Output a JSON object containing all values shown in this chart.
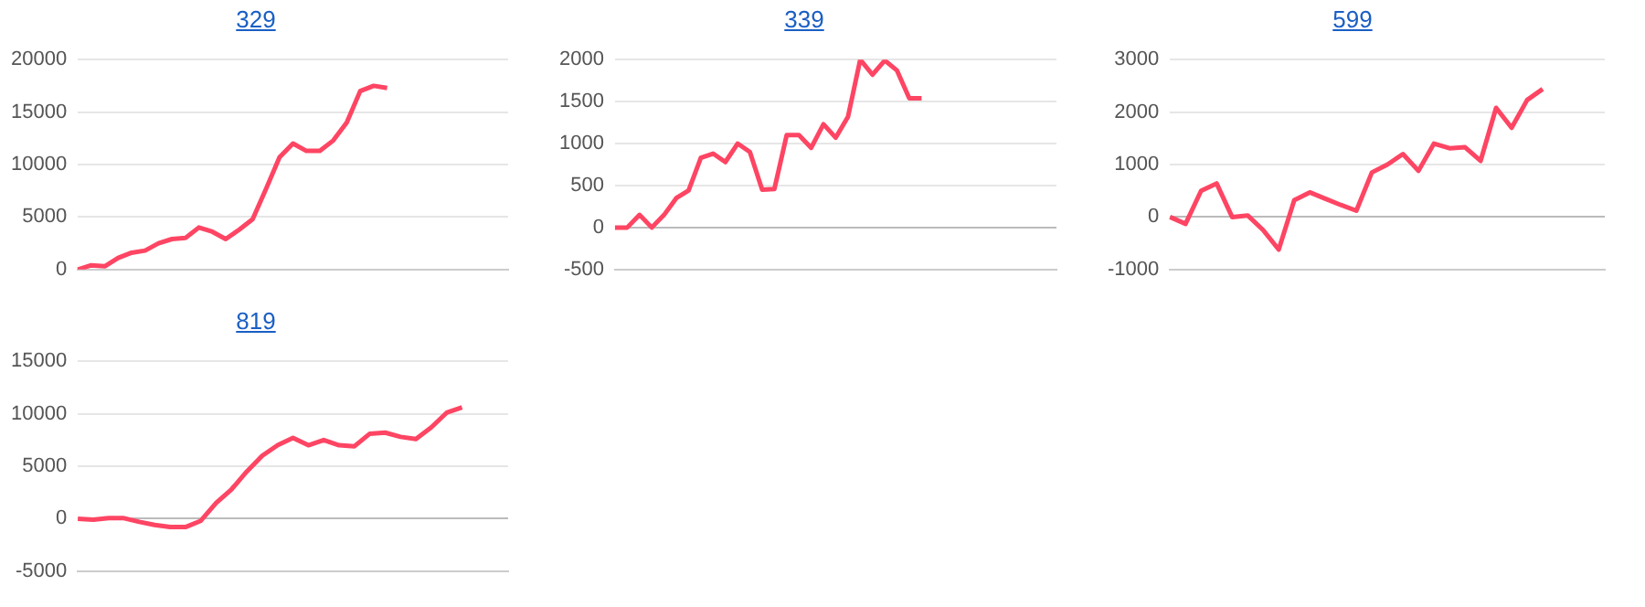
{
  "chart_data": [
    {
      "type": "line",
      "title": "329",
      "categories": [
        null,
        null,
        null,
        null,
        null,
        null,
        null,
        null,
        null,
        null,
        null,
        null,
        null,
        null,
        null,
        null,
        null,
        null,
        null,
        null,
        null,
        null,
        null,
        null,
        null,
        null,
        null,
        null,
        null,
        null,
        null,
        null,
        null
      ],
      "series": [
        {
          "color": "#fe4563",
          "values": [
            0,
            400,
            300,
            1100,
            1600,
            1800,
            2500,
            2900,
            3000,
            4000,
            3600,
            2900,
            3800,
            4800,
            7700,
            10700,
            12000,
            11300,
            11300,
            12300,
            14000,
            17000,
            17500,
            17300,
            null,
            null,
            null,
            null,
            null,
            null,
            null,
            null,
            null
          ]
        }
      ],
      "ylim": [
        0,
        20000
      ],
      "yticks": [
        0,
        5000,
        10000,
        15000,
        20000
      ],
      "grid": "y",
      "tick_labels": "y",
      "marker": "none"
    },
    {
      "type": "line",
      "title": "339",
      "categories": [
        null,
        null,
        null,
        null,
        null,
        null,
        null,
        null,
        null,
        null,
        null,
        null,
        null,
        null,
        null,
        null,
        null,
        null,
        null,
        null,
        null,
        null,
        null,
        null,
        null,
        null,
        null,
        null,
        null,
        null,
        null,
        null,
        null,
        null,
        null,
        null,
        null
      ],
      "series": [
        {
          "color": "#fe4563",
          "values": [
            0,
            0,
            150,
            0,
            150,
            350,
            440,
            830,
            880,
            780,
            1000,
            900,
            450,
            460,
            1100,
            1100,
            950,
            1230,
            1070,
            1320,
            2000,
            1820,
            1990,
            1870,
            1540,
            1540,
            null,
            null,
            null,
            null,
            null,
            null,
            null,
            null,
            null,
            null,
            null
          ]
        }
      ],
      "ylim": [
        -500,
        2000
      ],
      "yticks": [
        -500,
        0,
        500,
        1000,
        1500,
        2000
      ],
      "grid": "y",
      "tick_labels": "y",
      "marker": "none"
    },
    {
      "type": "line",
      "title": "599",
      "categories": [
        null,
        null,
        null,
        null,
        null,
        null,
        null,
        null,
        null,
        null,
        null,
        null,
        null,
        null,
        null,
        null,
        null,
        null,
        null,
        null,
        null,
        null,
        null,
        null,
        null,
        null,
        null,
        null,
        null
      ],
      "series": [
        {
          "color": "#fe4563",
          "values": [
            0,
            -130,
            500,
            640,
            0,
            30,
            -250,
            -620,
            320,
            470,
            350,
            230,
            120,
            850,
            1000,
            1200,
            880,
            1400,
            1310,
            1330,
            1070,
            2080,
            1700,
            2230,
            2440,
            null,
            null,
            null,
            null
          ]
        }
      ],
      "ylim": [
        -1000,
        3000
      ],
      "yticks": [
        -1000,
        0,
        1000,
        2000,
        3000
      ],
      "grid": "y",
      "tick_labels": "y",
      "marker": "none"
    },
    {
      "type": "line",
      "title": "819",
      "categories": [
        null,
        null,
        null,
        null,
        null,
        null,
        null,
        null,
        null,
        null,
        null,
        null,
        null,
        null,
        null,
        null,
        null,
        null,
        null,
        null,
        null,
        null,
        null,
        null,
        null,
        null,
        null,
        null,
        null
      ],
      "series": [
        {
          "color": "#fe4563",
          "values": [
            0,
            -100,
            50,
            50,
            -300,
            -600,
            -800,
            -800,
            -200,
            1500,
            2800,
            4500,
            6000,
            7000,
            7700,
            7000,
            7500,
            7000,
            6900,
            8100,
            8200,
            7800,
            7600,
            8700,
            10100,
            10600,
            null,
            null,
            null
          ]
        }
      ],
      "ylim": [
        -5000,
        15000
      ],
      "yticks": [
        -5000,
        0,
        5000,
        10000,
        15000
      ],
      "grid": "y",
      "tick_labels": "y",
      "marker": "none"
    }
  ]
}
